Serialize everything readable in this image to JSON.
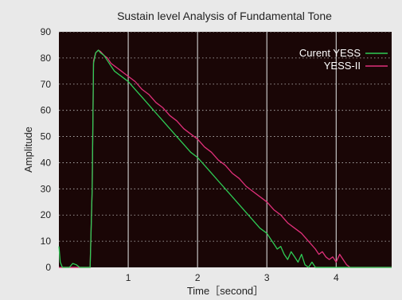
{
  "chart_data": {
    "type": "line",
    "title": "Sustain level Analysis of Fundamental Tone",
    "xlabel": "Time［second］",
    "ylabel": "Amplitude",
    "xlim": [
      0,
      4.8
    ],
    "ylim": [
      0,
      90
    ],
    "xticks": [
      1,
      2,
      3,
      4
    ],
    "yticks": [
      0,
      10,
      20,
      30,
      40,
      50,
      60,
      70,
      80,
      90
    ],
    "grid": {
      "vertical": "solid",
      "horizontal": "dotted"
    },
    "legend_position": "top-right",
    "background": "#1a0606",
    "series": [
      {
        "name": "Curent YESS",
        "color": "#2ecc55",
        "points": [
          [
            0,
            8
          ],
          [
            0.02,
            2
          ],
          [
            0.05,
            0
          ],
          [
            0.15,
            0
          ],
          [
            0.2,
            1.5
          ],
          [
            0.25,
            1
          ],
          [
            0.3,
            0
          ],
          [
            0.4,
            0
          ],
          [
            0.45,
            0
          ],
          [
            0.48,
            30
          ],
          [
            0.5,
            78
          ],
          [
            0.53,
            82
          ],
          [
            0.57,
            83
          ],
          [
            0.6,
            82
          ],
          [
            0.65,
            81
          ],
          [
            0.7,
            79
          ],
          [
            0.75,
            77
          ],
          [
            0.8,
            75
          ],
          [
            0.85,
            74
          ],
          [
            0.9,
            73
          ],
          [
            0.95,
            72
          ],
          [
            1.0,
            71
          ],
          [
            1.1,
            68
          ],
          [
            1.2,
            65
          ],
          [
            1.3,
            62
          ],
          [
            1.4,
            59
          ],
          [
            1.5,
            56
          ],
          [
            1.6,
            53
          ],
          [
            1.7,
            50
          ],
          [
            1.8,
            47
          ],
          [
            1.9,
            44
          ],
          [
            2.0,
            42
          ],
          [
            2.1,
            39
          ],
          [
            2.2,
            36
          ],
          [
            2.3,
            33
          ],
          [
            2.4,
            30
          ],
          [
            2.5,
            27
          ],
          [
            2.6,
            24
          ],
          [
            2.7,
            21
          ],
          [
            2.8,
            18
          ],
          [
            2.9,
            15
          ],
          [
            3.0,
            13
          ],
          [
            3.05,
            11
          ],
          [
            3.1,
            9
          ],
          [
            3.15,
            7
          ],
          [
            3.2,
            8
          ],
          [
            3.25,
            5
          ],
          [
            3.3,
            3
          ],
          [
            3.35,
            6
          ],
          [
            3.4,
            4
          ],
          [
            3.45,
            2
          ],
          [
            3.5,
            5
          ],
          [
            3.55,
            1
          ],
          [
            3.6,
            0
          ],
          [
            3.65,
            2
          ],
          [
            3.7,
            0
          ],
          [
            3.8,
            0
          ],
          [
            4.0,
            0
          ],
          [
            4.3,
            0
          ],
          [
            4.6,
            0
          ],
          [
            4.8,
            0
          ]
        ]
      },
      {
        "name": "YESS-II",
        "color": "#e0307a",
        "points": [
          [
            0,
            0
          ],
          [
            0.1,
            0
          ],
          [
            0.2,
            0
          ],
          [
            0.3,
            0
          ],
          [
            0.4,
            0
          ],
          [
            0.45,
            0
          ],
          [
            0.48,
            30
          ],
          [
            0.5,
            79
          ],
          [
            0.53,
            82
          ],
          [
            0.57,
            83
          ],
          [
            0.6,
            82.5
          ],
          [
            0.65,
            81
          ],
          [
            0.7,
            80
          ],
          [
            0.75,
            78
          ],
          [
            0.8,
            77
          ],
          [
            0.85,
            76
          ],
          [
            0.9,
            75
          ],
          [
            0.95,
            74
          ],
          [
            1.0,
            73
          ],
          [
            1.1,
            71
          ],
          [
            1.2,
            68
          ],
          [
            1.3,
            66
          ],
          [
            1.4,
            63
          ],
          [
            1.5,
            61
          ],
          [
            1.6,
            58
          ],
          [
            1.7,
            56
          ],
          [
            1.8,
            53
          ],
          [
            1.9,
            51
          ],
          [
            2.0,
            49
          ],
          [
            2.1,
            46
          ],
          [
            2.2,
            44
          ],
          [
            2.3,
            41
          ],
          [
            2.4,
            39
          ],
          [
            2.5,
            36
          ],
          [
            2.6,
            34
          ],
          [
            2.7,
            31
          ],
          [
            2.8,
            29
          ],
          [
            2.9,
            27
          ],
          [
            3.0,
            25
          ],
          [
            3.1,
            22
          ],
          [
            3.2,
            20
          ],
          [
            3.3,
            17
          ],
          [
            3.4,
            15
          ],
          [
            3.5,
            13
          ],
          [
            3.6,
            10
          ],
          [
            3.7,
            7
          ],
          [
            3.75,
            5
          ],
          [
            3.8,
            6
          ],
          [
            3.85,
            4
          ],
          [
            3.9,
            3
          ],
          [
            3.95,
            4
          ],
          [
            4.0,
            2
          ],
          [
            4.05,
            5
          ],
          [
            4.1,
            3
          ],
          [
            4.15,
            1
          ],
          [
            4.2,
            0
          ],
          [
            4.3,
            0
          ],
          [
            4.5,
            0
          ],
          [
            4.7,
            0
          ],
          [
            4.8,
            0
          ]
        ]
      }
    ]
  }
}
